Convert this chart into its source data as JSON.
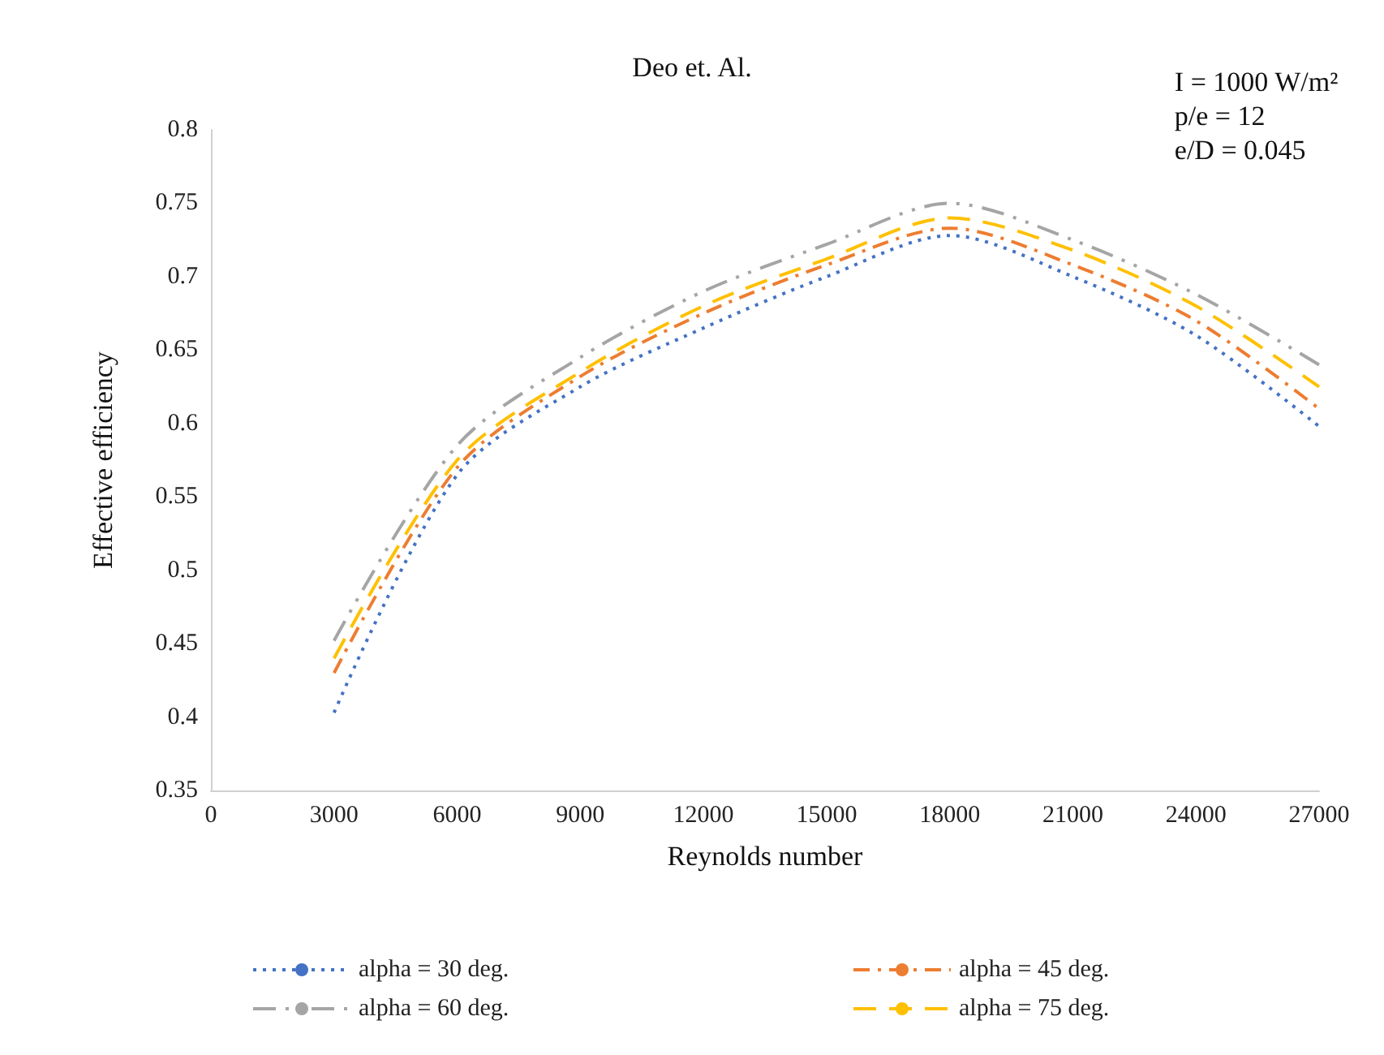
{
  "chart_data": {
    "type": "line",
    "title": "Deo et. Al.",
    "xlabel": "Reynolds number",
    "ylabel": "Effective efficiency",
    "annotations": [
      "I = 1000 W/m²\np/e = 12\ne/D = 0.045"
    ],
    "x": [
      3000,
      6000,
      9000,
      12000,
      15000,
      18000,
      21000,
      24000,
      27000
    ],
    "series": [
      {
        "name": "alpha = 30 deg.",
        "color": "#4472c4",
        "line_style": "dotted",
        "values": [
          0.403,
          0.565,
          0.625,
          0.665,
          0.7,
          0.728,
          0.7,
          0.66,
          0.598
        ]
      },
      {
        "name": "alpha = 45 deg.",
        "color": "#ed7d31",
        "line_style": "dashed",
        "values": [
          0.43,
          0.57,
          0.632,
          0.675,
          0.708,
          0.733,
          0.708,
          0.67,
          0.61
        ]
      },
      {
        "name": "alpha = 60 deg.",
        "color": "#a5a5a5",
        "line_style": "dashed",
        "values": [
          0.452,
          0.585,
          0.645,
          0.69,
          0.722,
          0.75,
          0.725,
          0.688,
          0.64
        ]
      },
      {
        "name": "alpha = 75 deg.",
        "color": "#ffc000",
        "line_style": "dashed",
        "values": [
          0.44,
          0.575,
          0.635,
          0.68,
          0.712,
          0.74,
          0.718,
          0.68,
          0.625
        ]
      }
    ],
    "xlim": [
      0,
      27000
    ],
    "xticks": [
      0,
      3000,
      6000,
      9000,
      12000,
      15000,
      18000,
      21000,
      24000,
      27000
    ],
    "ylim": [
      0.35,
      0.8
    ],
    "yticks": [
      0.35,
      0.4,
      0.45,
      0.5,
      0.55,
      0.6,
      0.65,
      0.7,
      0.75,
      0.8
    ],
    "grid": false,
    "legend": "bottom",
    "marker": "none"
  }
}
